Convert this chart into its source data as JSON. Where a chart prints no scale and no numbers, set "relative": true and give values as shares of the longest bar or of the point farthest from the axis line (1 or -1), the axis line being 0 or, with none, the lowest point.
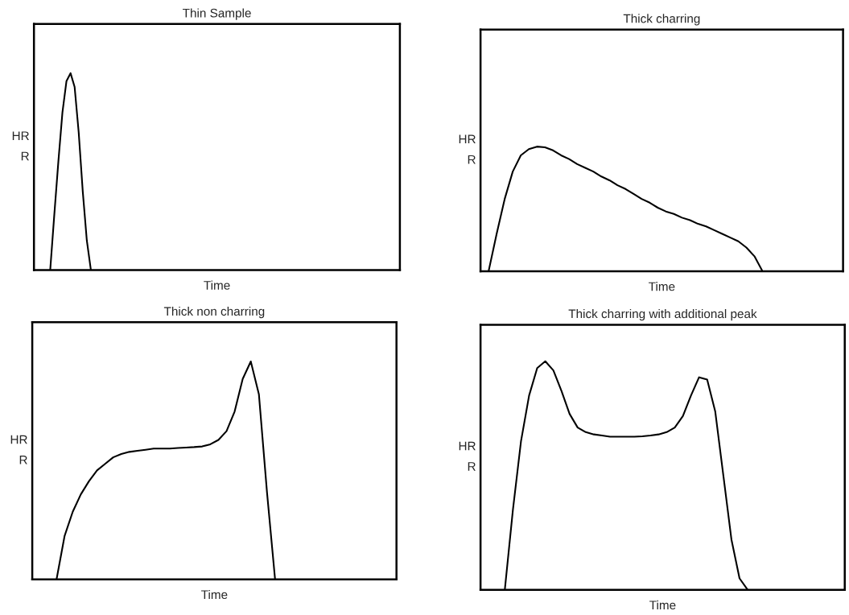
{
  "chart_data": [
    {
      "type": "line",
      "title": "Thin Sample",
      "xlabel": "Time",
      "ylabel": "HR\nR",
      "relative": true,
      "categories": [
        null,
        null,
        null,
        null,
        null,
        null,
        null,
        null,
        null,
        null,
        null,
        null,
        null,
        null,
        null,
        null,
        null,
        null,
        null,
        null,
        null,
        null,
        null,
        null,
        null,
        null,
        null,
        null,
        null,
        null,
        null,
        null,
        null,
        null,
        null,
        null,
        null,
        null,
        null,
        null,
        null,
        null,
        null,
        null,
        null,
        null,
        null,
        null,
        null,
        null,
        null,
        null,
        null,
        null,
        null,
        null,
        null,
        null,
        null,
        null,
        null,
        null,
        null,
        null,
        null,
        null,
        null,
        null,
        null,
        null,
        null,
        null,
        null,
        null,
        null,
        null,
        null,
        null,
        null,
        null,
        null,
        null,
        null,
        null,
        null,
        null,
        null,
        null,
        null,
        null,
        null
      ],
      "series": [
        {
          "color": "#000000",
          "values": [
            null,
            null,
            null,
            null,
            0,
            0.28,
            0.55,
            0.8,
            0.96,
            1.0,
            0.93,
            0.7,
            0.4,
            0.15,
            0,
            null,
            null,
            null,
            null,
            null,
            null,
            null,
            null,
            null,
            null,
            null,
            null,
            null,
            null,
            null,
            null,
            null,
            null,
            null,
            null,
            null,
            null,
            null,
            null,
            null,
            null,
            null,
            null,
            null,
            null,
            null,
            null,
            null,
            null,
            null,
            null,
            null,
            null,
            null,
            null,
            null,
            null,
            null,
            null,
            null,
            null,
            null,
            null,
            null,
            null,
            null,
            null,
            null,
            null,
            null,
            null,
            null,
            null,
            null,
            null,
            null,
            null,
            null,
            null,
            null,
            null,
            null,
            null,
            null,
            null,
            null,
            null,
            null,
            null,
            null,
            null
          ]
        }
      ]
    },
    {
      "type": "line",
      "title": "Thick charring",
      "xlabel": "Time",
      "ylabel": "HR\nR",
      "relative": true,
      "categories": [
        null,
        null,
        null,
        null,
        null,
        null,
        null,
        null,
        null,
        null,
        null,
        null,
        null,
        null,
        null,
        null,
        null,
        null,
        null,
        null,
        null,
        null,
        null,
        null,
        null,
        null,
        null,
        null,
        null,
        null,
        null,
        null,
        null,
        null,
        null,
        null,
        null,
        null,
        null,
        null,
        null,
        null,
        null,
        null,
        null,
        null
      ],
      "series": [
        {
          "color": "#000000",
          "values": [
            null,
            0,
            0.3,
            0.58,
            0.8,
            0.93,
            0.98,
            1.0,
            0.995,
            0.97,
            0.93,
            0.9,
            0.86,
            0.83,
            0.8,
            0.76,
            0.73,
            0.69,
            0.66,
            0.62,
            0.58,
            0.55,
            0.51,
            0.48,
            0.46,
            0.43,
            0.41,
            0.38,
            0.36,
            0.33,
            0.3,
            0.27,
            0.24,
            0.19,
            0.12,
            0,
            null,
            null,
            null,
            null,
            null,
            null,
            null,
            null,
            null,
            null
          ]
        }
      ]
    },
    {
      "type": "line",
      "title": "Thick non charring",
      "xlabel": "Time",
      "ylabel": "HR\nR",
      "relative": true,
      "categories": [
        null,
        null,
        null,
        null,
        null,
        null,
        null,
        null,
        null,
        null,
        null,
        null,
        null,
        null,
        null,
        null,
        null,
        null,
        null,
        null,
        null,
        null,
        null,
        null,
        null,
        null,
        null,
        null,
        null,
        null,
        null,
        null,
        null,
        null,
        null,
        null,
        null,
        null,
        null,
        null,
        null,
        null,
        null,
        null,
        null,
        null
      ],
      "series": [
        {
          "color": "#000000",
          "values": [
            null,
            null,
            null,
            0,
            0.2,
            0.31,
            0.39,
            0.45,
            0.5,
            0.53,
            0.56,
            0.575,
            0.585,
            0.59,
            0.595,
            0.6,
            0.6,
            0.6,
            0.603,
            0.605,
            0.607,
            0.61,
            0.62,
            0.64,
            0.68,
            0.77,
            0.92,
            1.0,
            0.85,
            0.4,
            0,
            null,
            null,
            null,
            null,
            null,
            null,
            null,
            null,
            null,
            null,
            null,
            null,
            null,
            null,
            null
          ]
        }
      ]
    },
    {
      "type": "line",
      "title": "Thick charring with additional peak",
      "xlabel": "Time",
      "ylabel": "HR\nR",
      "relative": true,
      "categories": [
        null,
        null,
        null,
        null,
        null,
        null,
        null,
        null,
        null,
        null,
        null,
        null,
        null,
        null,
        null,
        null,
        null,
        null,
        null,
        null,
        null,
        null,
        null,
        null,
        null,
        null,
        null,
        null,
        null,
        null,
        null,
        null,
        null,
        null,
        null,
        null,
        null,
        null,
        null,
        null,
        null,
        null,
        null,
        null,
        null,
        null
      ],
      "series": [
        {
          "color": "#000000",
          "values": [
            null,
            null,
            null,
            0,
            0.35,
            0.65,
            0.85,
            0.97,
            1.0,
            0.96,
            0.87,
            0.77,
            0.71,
            0.69,
            0.68,
            0.675,
            0.67,
            0.67,
            0.67,
            0.67,
            0.672,
            0.675,
            0.68,
            0.69,
            0.71,
            0.76,
            0.85,
            0.93,
            0.92,
            0.78,
            0.5,
            0.22,
            0.05,
            0,
            null,
            null,
            null,
            null,
            null,
            null,
            null,
            null,
            null,
            null,
            null,
            null
          ]
        }
      ]
    }
  ]
}
